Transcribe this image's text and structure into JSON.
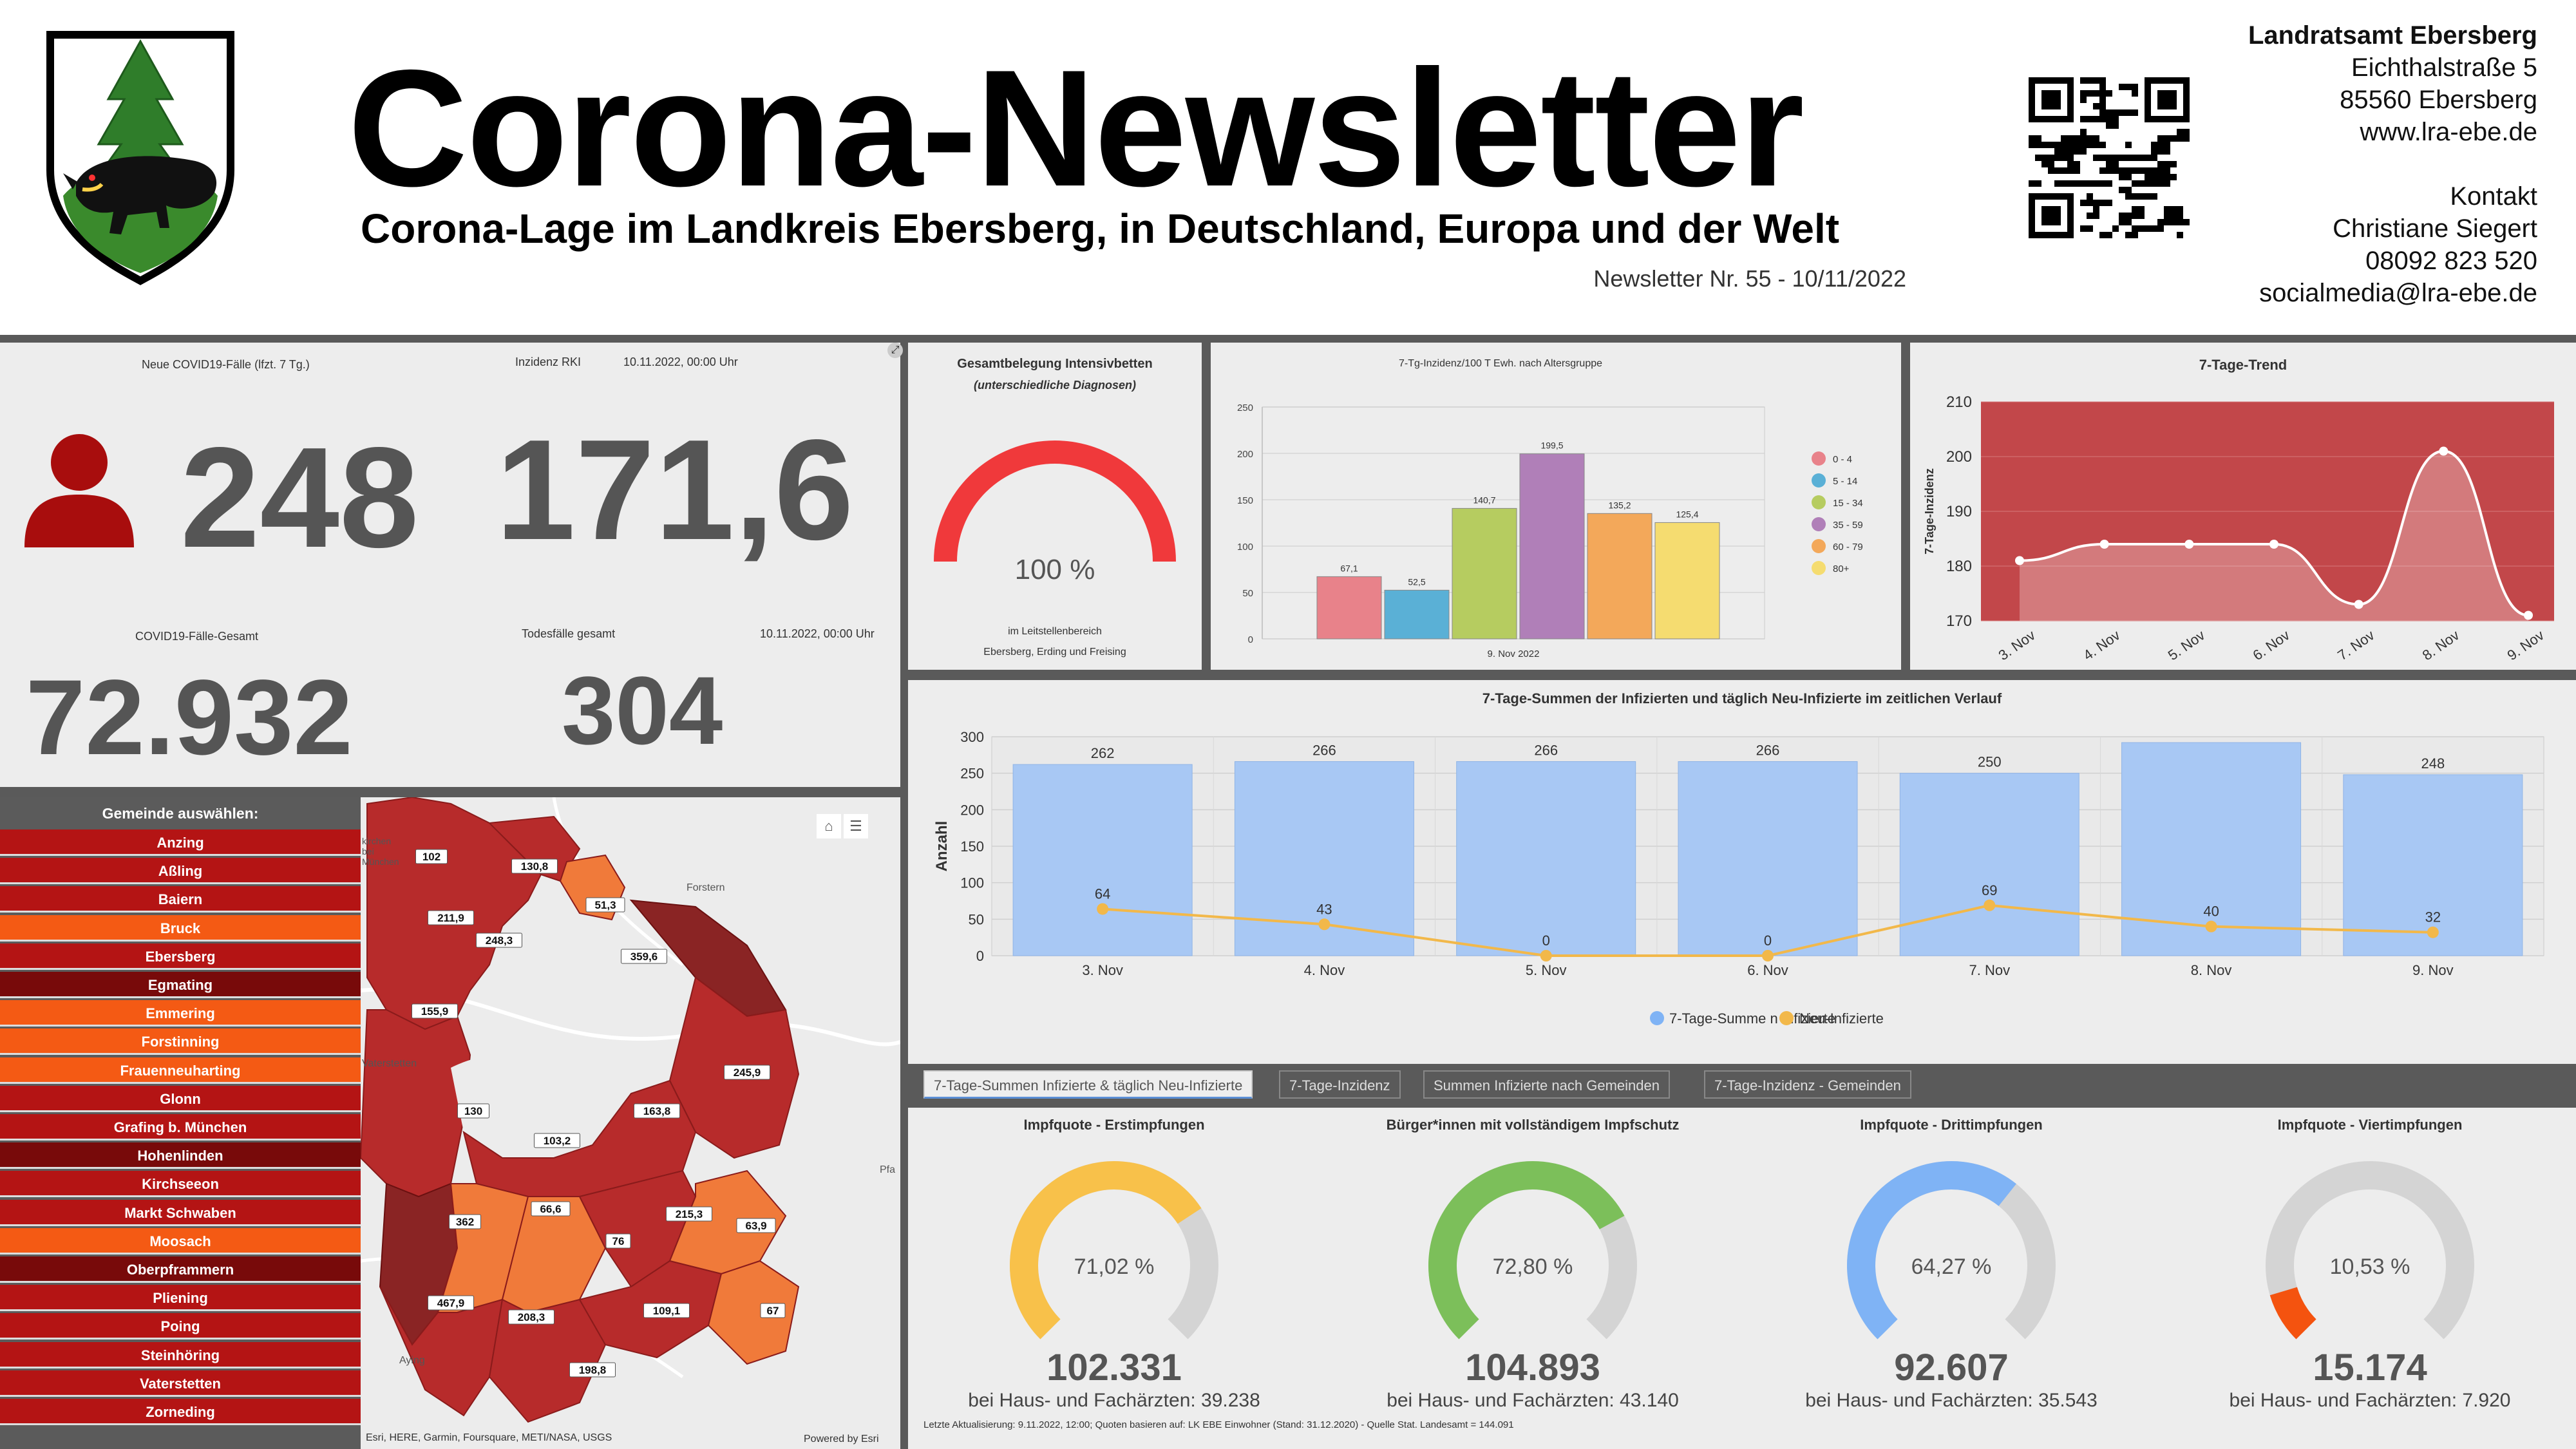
{
  "header": {
    "title": "Corona-Newsletter",
    "subtitle": "Corona-Lage im Landkreis Ebersberg, in Deutschland, Europa und der Welt",
    "newsletter": "Newsletter Nr. 55 - 10/11/2022",
    "contact": {
      "org": "Landratsamt Ebersberg",
      "street": "Eichthalstraße 5",
      "city": "85560 Ebersberg",
      "web": "www.lra-ebe.de",
      "kontakt_label": "Kontakt",
      "person": "Christiane Siegert",
      "phone": "08092 823 520",
      "email": "socialmedia@lra-ebe.de"
    }
  },
  "kpi": {
    "new_cases_label": "Neue COVID19-Fälle (lfzt. 7 Tg.)",
    "new_cases": "248",
    "incidence_label": "Inzidenz RKI",
    "incidence_date": "10.11.2022, 00:00 Uhr",
    "incidence": "171,6",
    "total_label": "COVID19-Fälle-Gesamt",
    "total": "72.932",
    "deaths_label": "Todesfälle gesamt",
    "deaths_date": "10.11.2022, 00:00 Uhr",
    "deaths": "304"
  },
  "icu": {
    "title": "Gesamtbelegung Intensivbetten",
    "subtitle": "(unterschiedliche Diagnosen)",
    "value": "100 %",
    "fraction": 1.0,
    "note1": "im Leitstellenbereich",
    "note2": "Ebersberg, Erding und Freising",
    "color": "#f0393b"
  },
  "age_chart": {
    "title": "7-Tg-Inzidenz/100 T Ewh. nach Altersgruppe",
    "xlabel": "9. Nov 2022"
  },
  "trend_chart": {
    "title": "7-Tage-Trend",
    "ylabel": "7-Tage-Inzidenz"
  },
  "sum_chart": {
    "title": "7-Tage-Summen der Infizierten und täglich Neu-Infizierte im zeitlichen Verlauf",
    "ylabel": "Anzahl",
    "legend_bar": "7-Tage-Summe n Infizierte",
    "legend_line": "Neu-Infizierte"
  },
  "chart_data": [
    {
      "type": "bar",
      "title": "7-Tg-Inzidenz/100 T Ewh. nach Altersgruppe",
      "xlabel": "9. Nov 2022",
      "ylim": [
        0,
        250
      ],
      "yticks": [
        0,
        50,
        100,
        150,
        200,
        250
      ],
      "legend_position": "right",
      "series": [
        {
          "name": "0 - 4",
          "value": 67.1,
          "label": "67,1",
          "color": "#e8828a"
        },
        {
          "name": "5 - 14",
          "value": 52.5,
          "label": "52,5",
          "color": "#5ab0d6"
        },
        {
          "name": "15 - 34",
          "value": 140.7,
          "label": "140,7",
          "color": "#b6cc60"
        },
        {
          "name": "35 - 59",
          "value": 199.5,
          "label": "199,5",
          "color": "#b07fb8"
        },
        {
          "name": "60 - 79",
          "value": 135.2,
          "label": "135,2",
          "color": "#f3a85a"
        },
        {
          "name": "80+",
          "value": 125.4,
          "label": "125,4",
          "color": "#f5dc70"
        }
      ]
    },
    {
      "type": "area",
      "title": "7-Tage-Trend",
      "ylabel": "7-Tage-Inzidenz",
      "categories": [
        "3. Nov",
        "4. Nov",
        "5. Nov",
        "6. Nov",
        "7. Nov",
        "8. Nov",
        "9. Nov"
      ],
      "values": [
        181,
        184,
        184,
        184,
        173,
        201,
        171
      ],
      "ylim": [
        170,
        210
      ],
      "yticks": [
        170,
        180,
        190,
        200,
        210
      ],
      "color": "#c2474a"
    },
    {
      "type": "bar",
      "title": "7-Tage-Summen der Infizierten und täglich Neu-Infizierte im zeitlichen Verlauf",
      "ylabel": "Anzahl",
      "categories": [
        "3. Nov",
        "4. Nov",
        "5. Nov",
        "6. Nov",
        "7. Nov",
        "8. Nov",
        "9. Nov"
      ],
      "ylim": [
        0,
        300
      ],
      "yticks": [
        0,
        50,
        100,
        150,
        200,
        250,
        300
      ],
      "series": [
        {
          "name": "7-Tage-Summe n Infizierte",
          "type": "bar",
          "values": [
            262,
            266,
            266,
            266,
            250,
            292,
            248
          ],
          "labels": [
            "262",
            "266",
            "266",
            "266",
            "250",
            "",
            "248"
          ],
          "color": "#a8c8f4"
        },
        {
          "name": "Neu-Infizierte",
          "type": "line",
          "values": [
            64,
            43,
            0,
            0,
            69,
            40,
            32
          ],
          "labels": [
            "64",
            "43",
            "0",
            "0",
            "69",
            "40",
            "32"
          ],
          "color": "#f2b84a"
        }
      ],
      "legend_position": "bottom"
    }
  ],
  "tabs": [
    "7-Tage-Summen Infizierte & täglich Neu-Infizierte",
    "7-Tage-Inzidenz",
    "Summen Infizierte nach Gemeinden",
    "7-Tage-Inzidenz - Gemeinden"
  ],
  "gemeinden": {
    "header": "Gemeinde auswählen:",
    "items": [
      {
        "name": "Anzing",
        "color": "#b41414"
      },
      {
        "name": "Aßling",
        "color": "#b41414"
      },
      {
        "name": "Baiern",
        "color": "#b41414"
      },
      {
        "name": "Bruck",
        "color": "#f45a14"
      },
      {
        "name": "Ebersberg",
        "color": "#b41414"
      },
      {
        "name": "Egmating",
        "color": "#780a0a"
      },
      {
        "name": "Emmering",
        "color": "#f45a14"
      },
      {
        "name": "Forstinning",
        "color": "#f45a14"
      },
      {
        "name": "Frauenneuharting",
        "color": "#f45a14"
      },
      {
        "name": "Glonn",
        "color": "#b41414"
      },
      {
        "name": "Grafing b. München",
        "color": "#b41414"
      },
      {
        "name": "Hohenlinden",
        "color": "#780a0a"
      },
      {
        "name": "Kirchseeon",
        "color": "#b41414"
      },
      {
        "name": "Markt Schwaben",
        "color": "#b41414"
      },
      {
        "name": "Moosach",
        "color": "#f45a14"
      },
      {
        "name": "Oberpframmern",
        "color": "#780a0a"
      },
      {
        "name": "Pliening",
        "color": "#b41414"
      },
      {
        "name": "Poing",
        "color": "#b41414"
      },
      {
        "name": "Steinhöring",
        "color": "#b41414"
      },
      {
        "name": "Vaterstetten",
        "color": "#b41414"
      },
      {
        "name": "Zorneding",
        "color": "#b41414"
      }
    ]
  },
  "map": {
    "attribution": "Esri, HERE, Garmin, Foursquare, METI/NASA, USGS",
    "powered": "Powered by Esri",
    "places": [
      "Forstern",
      "Vaterstetten",
      "Aying",
      "Pfa",
      "kirchen bei München"
    ],
    "labels": [
      {
        "v": "102"
      },
      {
        "v": "130,8"
      },
      {
        "v": "51,3"
      },
      {
        "v": "211,9"
      },
      {
        "v": "248,3"
      },
      {
        "v": "359,6"
      },
      {
        "v": "155,9"
      },
      {
        "v": "245,9"
      },
      {
        "v": "130"
      },
      {
        "v": "163,8"
      },
      {
        "v": "103,2"
      },
      {
        "v": "362"
      },
      {
        "v": "66,6"
      },
      {
        "v": "76"
      },
      {
        "v": "215,3"
      },
      {
        "v": "63,9"
      },
      {
        "v": "467,9"
      },
      {
        "v": "208,3"
      },
      {
        "v": "109,1"
      },
      {
        "v": "67"
      },
      {
        "v": "198,8"
      }
    ]
  },
  "vaccination": [
    {
      "title": "Impfquote  - Erstimpfungen",
      "percent_label": "71,02 %",
      "percent": 71.02,
      "count": "102.331",
      "sub": "bei Haus- und Fachärzten: 39.238",
      "color": "#f8c14a"
    },
    {
      "title": "Bürger*innen mit vollständigem Impfschutz",
      "percent_label": "72,80 %",
      "percent": 72.8,
      "count": "104.893",
      "sub": "bei Haus- und Fachärzten: 43.140",
      "color": "#7cbf5a"
    },
    {
      "title": "Impfquote  - Drittimpfungen",
      "percent_label": "64,27 %",
      "percent": 64.27,
      "count": "92.607",
      "sub": "bei Haus- und Fachärzten: 35.543",
      "color": "#7fb3f5"
    },
    {
      "title": "Impfquote  - Viertimpfungen",
      "percent_label": "10,53 %",
      "percent": 10.53,
      "count": "15.174",
      "sub": "bei Haus- und Fachärzten: 7.920",
      "color": "#f4530f"
    }
  ],
  "footer_note": "Letzte Aktualisierung: 9.11.2022, 12:00; Quoten basieren auf: LK EBE Einwohner (Stand: 31.12.2020) - Quelle Stat. Landesamt = 144.091"
}
